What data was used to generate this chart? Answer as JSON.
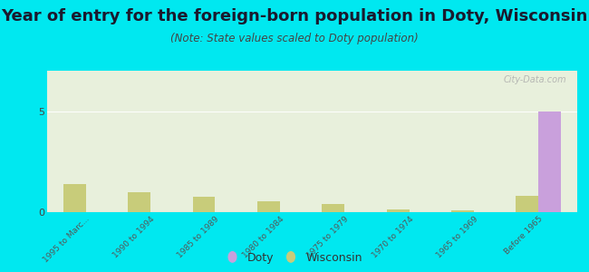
{
  "title": "Year of entry for the foreign-born population in Doty, Wisconsin",
  "subtitle": "(Note: State values scaled to Doty population)",
  "categories": [
    "1995 to Marc...",
    "1990 to 1994",
    "1985 to 1989",
    "1980 to 1984",
    "1975 to 1979",
    "1970 to 1974",
    "1965 to 1969",
    "Before 1965"
  ],
  "doty_values": [
    0,
    0,
    0,
    0,
    0,
    0,
    0,
    5
  ],
  "wisconsin_values": [
    1.4,
    1.0,
    0.75,
    0.55,
    0.4,
    0.12,
    0.08,
    0.8
  ],
  "doty_color": "#c9a0dc",
  "wisconsin_color": "#c8cc7a",
  "background_outer": "#00e8f0",
  "background_plot_color": "#e8f0dc",
  "ylim": [
    0,
    7
  ],
  "yticks": [
    0,
    5
  ],
  "bar_width": 0.35,
  "watermark": "City-Data.com",
  "title_fontsize": 13,
  "subtitle_fontsize": 8.5
}
